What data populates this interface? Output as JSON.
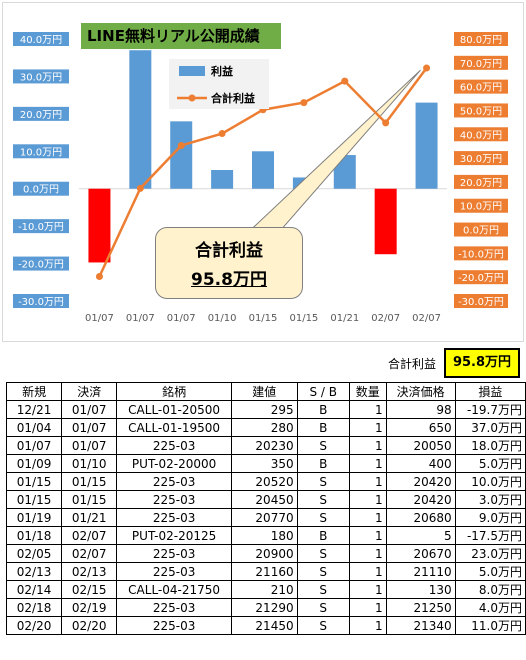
{
  "chart_data": {
    "type": "bar",
    "title": "LINE無料リアル公開成績",
    "categories": [
      "01/07",
      "01/07",
      "01/07",
      "01/10",
      "01/15",
      "01/15",
      "01/21",
      "02/07",
      "02/07"
    ],
    "series": [
      {
        "name": "利益",
        "type": "bar",
        "axis": "left",
        "color": "#5b9bd5",
        "negative_color": "#ff0000",
        "values": [
          -19.7,
          37.0,
          18.0,
          5.0,
          10.0,
          3.0,
          9.0,
          -17.5,
          23.0
        ]
      },
      {
        "name": "合計利益",
        "type": "line",
        "axis": "right",
        "color": "#ed7d31",
        "values": [
          -19.7,
          17.3,
          35.3,
          40.3,
          50.3,
          53.3,
          62.3,
          44.8,
          67.8
        ]
      }
    ],
    "left_axis": {
      "ylim": [
        -30,
        40
      ],
      "ticks": [
        "40.0万円",
        "30.0万円",
        "20.0万円",
        "10.0万円",
        "0.0万円",
        "-10.0万円",
        "-20.0万円",
        "-30.0万円"
      ],
      "label_color": "#5b9bd5"
    },
    "right_axis": {
      "ylim": [
        -30,
        80
      ],
      "ticks": [
        "80.0万円",
        "70.0万円",
        "60.0万円",
        "50.0万円",
        "40.0万円",
        "30.0万円",
        "20.0万円",
        "10.0万円",
        "0.0万円",
        "-10.0万円",
        "-20.0万円",
        "-30.0万円"
      ],
      "label_color": "#ed7d31"
    },
    "grid": false,
    "legend_position": "top-center",
    "annotation": {
      "line1": "合計利益",
      "line2": "95.8万円"
    }
  },
  "summary": {
    "label": "合計利益",
    "value": "95.8万円"
  },
  "table": {
    "headers": [
      "新規",
      "決済",
      "銘柄",
      "建値",
      "S / B",
      "数量",
      "決済価格",
      "損益"
    ],
    "rows": [
      [
        "12/21",
        "01/07",
        "CALL-01-20500",
        "295",
        "B",
        "1",
        "98",
        "-19.7万円"
      ],
      [
        "01/04",
        "01/07",
        "CALL-01-19500",
        "280",
        "B",
        "1",
        "650",
        "37.0万円"
      ],
      [
        "01/07",
        "01/07",
        "225-03",
        "20230",
        "S",
        "1",
        "20050",
        "18.0万円"
      ],
      [
        "01/09",
        "01/10",
        "PUT-02-20000",
        "350",
        "B",
        "1",
        "400",
        "5.0万円"
      ],
      [
        "01/15",
        "01/15",
        "225-03",
        "20520",
        "S",
        "1",
        "20420",
        "10.0万円"
      ],
      [
        "01/15",
        "01/15",
        "225-03",
        "20450",
        "S",
        "1",
        "20420",
        "3.0万円"
      ],
      [
        "01/19",
        "01/21",
        "225-03",
        "20770",
        "S",
        "1",
        "20680",
        "9.0万円"
      ],
      [
        "01/18",
        "02/07",
        "PUT-02-20125",
        "180",
        "B",
        "1",
        "5",
        "-17.5万円"
      ],
      [
        "02/05",
        "02/07",
        "225-03",
        "20900",
        "S",
        "1",
        "20670",
        "23.0万円"
      ],
      [
        "02/13",
        "02/13",
        "225-03",
        "21160",
        "S",
        "1",
        "21110",
        "5.0万円"
      ],
      [
        "02/14",
        "02/15",
        "CALL-04-21750",
        "210",
        "S",
        "1",
        "130",
        "8.0万円"
      ],
      [
        "02/18",
        "02/19",
        "225-03",
        "21290",
        "S",
        "1",
        "21250",
        "4.0万円"
      ],
      [
        "02/20",
        "02/20",
        "225-03",
        "21450",
        "S",
        "1",
        "21340",
        "11.0万円"
      ]
    ]
  }
}
